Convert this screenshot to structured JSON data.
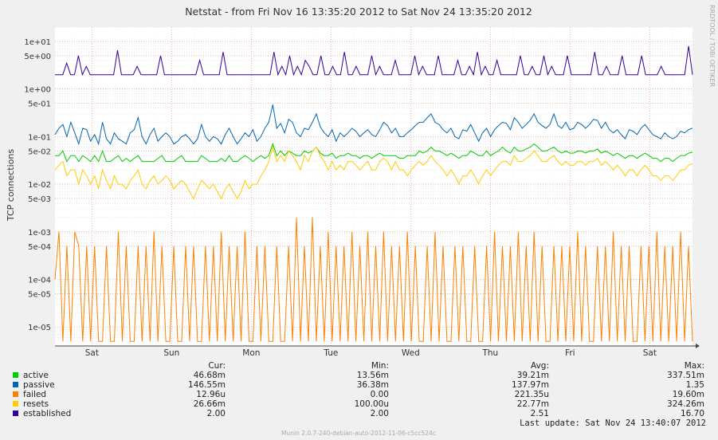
{
  "title": "Netstat - from Fri Nov 16 13:35:20 2012 to Sat Nov 24 13:35:20 2012",
  "watermark": "RRDTOOL / TOBI OETIKER",
  "footer": "Munin 2.0.7-240-debian-auto-2012-11-06-c5cc524c",
  "last_update": "Last update:  Sat Nov 24 13:40:07 2012",
  "legend_headers": [
    "Cur:",
    "Min:",
    "Avg:",
    "Max:"
  ],
  "legend": [
    {
      "name": "active",
      "color": "#00cc00",
      "cur": "46.68m",
      "min": "13.56m",
      "avg": "39.21m",
      "max": "337.51m"
    },
    {
      "name": "passive",
      "color": "#0066b3",
      "cur": "146.55m",
      "min": "36.38m",
      "avg": "137.97m",
      "max": "1.35"
    },
    {
      "name": "failed",
      "color": "#ff8000",
      "cur": "12.96u",
      "min": "0.00",
      "avg": "221.35u",
      "max": "19.60m"
    },
    {
      "name": "resets",
      "color": "#ffcc00",
      "cur": "26.66m",
      "min": "100.00u",
      "avg": "22.77m",
      "max": "324.26m"
    },
    {
      "name": "established",
      "color": "#330099",
      "cur": "2.00",
      "min": "2.00",
      "avg": "2.51",
      "max": "16.70"
    }
  ],
  "chart_data": {
    "type": "line",
    "title": "Netstat - from Fri Nov 16 13:35:20 2012 to Sat Nov 24 13:35:20 2012",
    "xlabel": "",
    "ylabel": "TCP connections",
    "y_scale": "log",
    "ylim": [
      4e-06,
      20
    ],
    "y_ticks": [
      "1e+01",
      "5e+00",
      "1e+00",
      "5e-01",
      "1e-01",
      "5e-02",
      "1e-02",
      "5e-03",
      "1e-03",
      "5e-04",
      "1e-04",
      "5e-05",
      "1e-05"
    ],
    "x_ticks": [
      "Sat",
      "Sun",
      "Mon",
      "Tue",
      "Wed",
      "Thu",
      "Fri",
      "Sat"
    ],
    "xlim": [
      "2012-11-16 13:35",
      "2012-11-24 13:35"
    ],
    "grid": true,
    "series": [
      {
        "name": "established",
        "color": "#330099",
        "values": [
          2.0,
          2.0,
          2.0,
          3.5,
          2.0,
          2.0,
          5.0,
          2.0,
          3.0,
          2.0,
          2.0,
          2.0,
          2.0,
          2.0,
          2.0,
          2.0,
          6.5,
          2.0,
          2.0,
          2.0,
          2.0,
          3.0,
          2.0,
          2.0,
          2.0,
          2.0,
          2.0,
          5.0,
          2.0,
          2.0,
          2.0,
          2.0,
          2.0,
          2.0,
          2.0,
          2.0,
          2.0,
          4.0,
          2.0,
          2.0,
          2.0,
          2.0,
          2.0,
          6.0,
          2.0,
          2.0,
          2.0,
          2.0,
          2.0,
          2.0,
          2.0,
          2.0,
          2.0,
          2.0,
          2.0,
          2.0,
          6.0,
          2.0,
          3.0,
          2.0,
          5.0,
          2.0,
          3.0,
          2.0,
          4.0,
          3.0,
          2.0,
          2.0,
          5.0,
          2.0,
          2.0,
          3.0,
          2.0,
          2.0,
          6.0,
          2.0,
          2.0,
          3.0,
          2.0,
          2.0,
          2.0,
          5.0,
          2.0,
          3.0,
          2.0,
          2.0,
          2.0,
          4.0,
          2.0,
          2.0,
          2.0,
          2.0,
          5.0,
          2.0,
          3.0,
          2.0,
          2.0,
          2.0,
          5.0,
          2.0,
          2.0,
          2.0,
          2.0,
          4.0,
          2.0,
          2.0,
          3.0,
          2.0,
          6.0,
          2.0,
          3.0,
          2.0,
          2.0,
          4.0,
          2.0,
          2.0,
          2.0,
          2.0,
          2.0,
          5.0,
          2.0,
          2.0,
          3.0,
          2.0,
          2.0,
          5.0,
          2.0,
          3.0,
          2.0,
          2.0,
          2.0,
          5.0,
          2.0,
          2.0,
          2.0,
          2.0,
          2.0,
          2.0,
          6.0,
          2.0,
          2.0,
          3.0,
          2.0,
          2.0,
          2.0,
          5.0,
          2.0,
          2.0,
          2.0,
          2.0,
          5.0,
          2.0,
          2.0,
          2.0,
          2.0,
          3.0,
          2.0,
          2.0,
          2.0,
          2.0,
          2.0,
          2.0,
          8.0,
          2.0
        ]
      },
      {
        "name": "passive",
        "color": "#0066b3",
        "values": [
          0.11,
          0.15,
          0.18,
          0.1,
          0.2,
          0.12,
          0.07,
          0.15,
          0.14,
          0.08,
          0.11,
          0.07,
          0.2,
          0.09,
          0.07,
          0.12,
          0.09,
          0.08,
          0.07,
          0.12,
          0.14,
          0.25,
          0.1,
          0.07,
          0.11,
          0.15,
          0.08,
          0.1,
          0.12,
          0.1,
          0.07,
          0.08,
          0.1,
          0.11,
          0.09,
          0.07,
          0.09,
          0.18,
          0.1,
          0.08,
          0.1,
          0.09,
          0.07,
          0.11,
          0.15,
          0.1,
          0.07,
          0.09,
          0.12,
          0.1,
          0.14,
          0.08,
          0.1,
          0.15,
          0.2,
          0.47,
          0.15,
          0.19,
          0.12,
          0.23,
          0.2,
          0.12,
          0.1,
          0.15,
          0.14,
          0.2,
          0.3,
          0.16,
          0.12,
          0.1,
          0.14,
          0.08,
          0.12,
          0.1,
          0.12,
          0.15,
          0.13,
          0.1,
          0.12,
          0.14,
          0.11,
          0.1,
          0.14,
          0.2,
          0.17,
          0.12,
          0.15,
          0.1,
          0.1,
          0.12,
          0.14,
          0.17,
          0.2,
          0.2,
          0.25,
          0.3,
          0.2,
          0.18,
          0.14,
          0.12,
          0.15,
          0.1,
          0.09,
          0.14,
          0.13,
          0.18,
          0.12,
          0.08,
          0.12,
          0.15,
          0.1,
          0.14,
          0.17,
          0.2,
          0.19,
          0.14,
          0.25,
          0.2,
          0.15,
          0.18,
          0.22,
          0.3,
          0.2,
          0.17,
          0.15,
          0.18,
          0.3,
          0.17,
          0.15,
          0.2,
          0.14,
          0.15,
          0.2,
          0.18,
          0.15,
          0.18,
          0.23,
          0.22,
          0.15,
          0.2,
          0.14,
          0.12,
          0.14,
          0.11,
          0.09,
          0.14,
          0.13,
          0.11,
          0.15,
          0.18,
          0.14,
          0.11,
          0.1,
          0.09,
          0.12,
          0.1,
          0.09,
          0.1,
          0.13,
          0.12,
          0.14,
          0.15
        ]
      },
      {
        "name": "active",
        "color": "#00cc00",
        "values": [
          0.04,
          0.04,
          0.05,
          0.03,
          0.04,
          0.04,
          0.03,
          0.04,
          0.035,
          0.03,
          0.04,
          0.03,
          0.05,
          0.03,
          0.03,
          0.035,
          0.04,
          0.03,
          0.035,
          0.03,
          0.035,
          0.04,
          0.03,
          0.03,
          0.03,
          0.03,
          0.035,
          0.04,
          0.03,
          0.03,
          0.03,
          0.035,
          0.04,
          0.03,
          0.03,
          0.03,
          0.03,
          0.04,
          0.035,
          0.03,
          0.03,
          0.03,
          0.035,
          0.03,
          0.04,
          0.03,
          0.03,
          0.035,
          0.04,
          0.035,
          0.03,
          0.035,
          0.04,
          0.035,
          0.04,
          0.07,
          0.04,
          0.05,
          0.04,
          0.05,
          0.045,
          0.04,
          0.04,
          0.05,
          0.045,
          0.05,
          0.06,
          0.045,
          0.04,
          0.04,
          0.045,
          0.035,
          0.04,
          0.04,
          0.045,
          0.04,
          0.04,
          0.035,
          0.04,
          0.04,
          0.035,
          0.04,
          0.045,
          0.04,
          0.04,
          0.04,
          0.04,
          0.035,
          0.035,
          0.04,
          0.04,
          0.04,
          0.05,
          0.045,
          0.05,
          0.06,
          0.05,
          0.05,
          0.045,
          0.04,
          0.045,
          0.04,
          0.035,
          0.04,
          0.04,
          0.05,
          0.045,
          0.04,
          0.04,
          0.05,
          0.04,
          0.045,
          0.05,
          0.06,
          0.05,
          0.045,
          0.06,
          0.05,
          0.05,
          0.055,
          0.06,
          0.07,
          0.06,
          0.05,
          0.05,
          0.055,
          0.06,
          0.05,
          0.045,
          0.05,
          0.045,
          0.045,
          0.05,
          0.05,
          0.045,
          0.05,
          0.05,
          0.055,
          0.045,
          0.05,
          0.045,
          0.04,
          0.045,
          0.04,
          0.035,
          0.04,
          0.04,
          0.035,
          0.04,
          0.045,
          0.04,
          0.035,
          0.035,
          0.03,
          0.035,
          0.035,
          0.03,
          0.035,
          0.04,
          0.04,
          0.045,
          0.047
        ]
      },
      {
        "name": "resets",
        "color": "#ffcc00",
        "values": [
          0.02,
          0.025,
          0.03,
          0.015,
          0.02,
          0.02,
          0.01,
          0.02,
          0.015,
          0.01,
          0.015,
          0.008,
          0.02,
          0.012,
          0.008,
          0.015,
          0.01,
          0.01,
          0.008,
          0.012,
          0.015,
          0.02,
          0.01,
          0.008,
          0.012,
          0.015,
          0.01,
          0.012,
          0.015,
          0.012,
          0.008,
          0.01,
          0.012,
          0.01,
          0.007,
          0.005,
          0.008,
          0.012,
          0.01,
          0.008,
          0.01,
          0.007,
          0.005,
          0.008,
          0.01,
          0.007,
          0.005,
          0.007,
          0.012,
          0.008,
          0.01,
          0.01,
          0.015,
          0.02,
          0.03,
          0.06,
          0.03,
          0.04,
          0.03,
          0.05,
          0.04,
          0.03,
          0.02,
          0.04,
          0.03,
          0.05,
          0.06,
          0.04,
          0.03,
          0.02,
          0.03,
          0.02,
          0.025,
          0.02,
          0.03,
          0.03,
          0.025,
          0.02,
          0.025,
          0.03,
          0.02,
          0.02,
          0.03,
          0.035,
          0.03,
          0.02,
          0.03,
          0.02,
          0.02,
          0.015,
          0.02,
          0.025,
          0.03,
          0.025,
          0.03,
          0.04,
          0.03,
          0.025,
          0.02,
          0.015,
          0.02,
          0.015,
          0.01,
          0.015,
          0.015,
          0.02,
          0.015,
          0.01,
          0.015,
          0.02,
          0.015,
          0.02,
          0.025,
          0.03,
          0.03,
          0.025,
          0.04,
          0.03,
          0.03,
          0.035,
          0.04,
          0.05,
          0.04,
          0.03,
          0.03,
          0.035,
          0.04,
          0.03,
          0.025,
          0.03,
          0.025,
          0.025,
          0.03,
          0.03,
          0.025,
          0.03,
          0.03,
          0.035,
          0.025,
          0.03,
          0.025,
          0.02,
          0.025,
          0.02,
          0.015,
          0.02,
          0.02,
          0.015,
          0.02,
          0.025,
          0.02,
          0.015,
          0.015,
          0.012,
          0.015,
          0.015,
          0.012,
          0.015,
          0.02,
          0.02,
          0.025,
          0.027
        ]
      },
      {
        "name": "failed",
        "color": "#ff8000",
        "values": [
          0.0001,
          0.001,
          5e-06,
          0.0005,
          5e-06,
          0.001,
          0.0005,
          5e-06,
          0.0005,
          5e-06,
          0.0005,
          5e-06,
          5e-06,
          0.0005,
          5e-06,
          5e-06,
          0.001,
          5e-06,
          0.0005,
          5e-06,
          5e-06,
          0.0005,
          5e-06,
          0.0005,
          5e-06,
          0.001,
          5e-06,
          0.0005,
          5e-06,
          5e-06,
          0.0005,
          5e-06,
          5e-06,
          0.0005,
          5e-06,
          0.0005,
          5e-06,
          5e-06,
          0.0005,
          5e-06,
          0.0005,
          5e-06,
          0.001,
          5e-06,
          0.0005,
          5e-06,
          0.0005,
          5e-06,
          0.001,
          5e-06,
          5e-06,
          0.0005,
          5e-06,
          0.0005,
          5e-06,
          5e-06,
          0.0005,
          5e-06,
          5e-06,
          0.0005,
          5e-06,
          0.002,
          5e-06,
          0.0005,
          5e-06,
          0.002,
          5e-06,
          0.0005,
          5e-06,
          0.001,
          5e-06,
          0.0005,
          5e-06,
          0.0005,
          5e-06,
          0.001,
          5e-06,
          0.0005,
          5e-06,
          0.001,
          5e-06,
          0.0005,
          5e-06,
          0.001,
          5e-06,
          0.0005,
          5e-06,
          0.0005,
          5e-06,
          0.001,
          5e-06,
          0.0005,
          5e-06,
          5e-06,
          0.0005,
          5e-06,
          0.001,
          5e-06,
          0.0005,
          5e-06,
          5e-06,
          0.0005,
          5e-06,
          0.0005,
          5e-06,
          5e-06,
          0.0005,
          5e-06,
          5e-06,
          0.0005,
          5e-06,
          0.001,
          5e-06,
          0.0005,
          5e-06,
          0.0005,
          5e-06,
          0.001,
          5e-06,
          0.0005,
          5e-06,
          0.001,
          5e-06,
          0.0005,
          5e-06,
          5e-06,
          0.0005,
          5e-06,
          0.0005,
          5e-06,
          0.0005,
          5e-06,
          0.001,
          5e-06,
          0.0005,
          5e-06,
          5e-06,
          0.0005,
          5e-06,
          0.0005,
          5e-06,
          0.001,
          5e-06,
          0.0005,
          5e-06,
          0.0005,
          5e-06,
          5e-06,
          0.0005,
          5e-06,
          0.0005,
          5e-06,
          0.001,
          5e-06,
          0.0005,
          5e-06,
          0.0005,
          5e-06,
          0.001,
          5e-06,
          0.0005,
          5e-06
        ]
      }
    ]
  }
}
